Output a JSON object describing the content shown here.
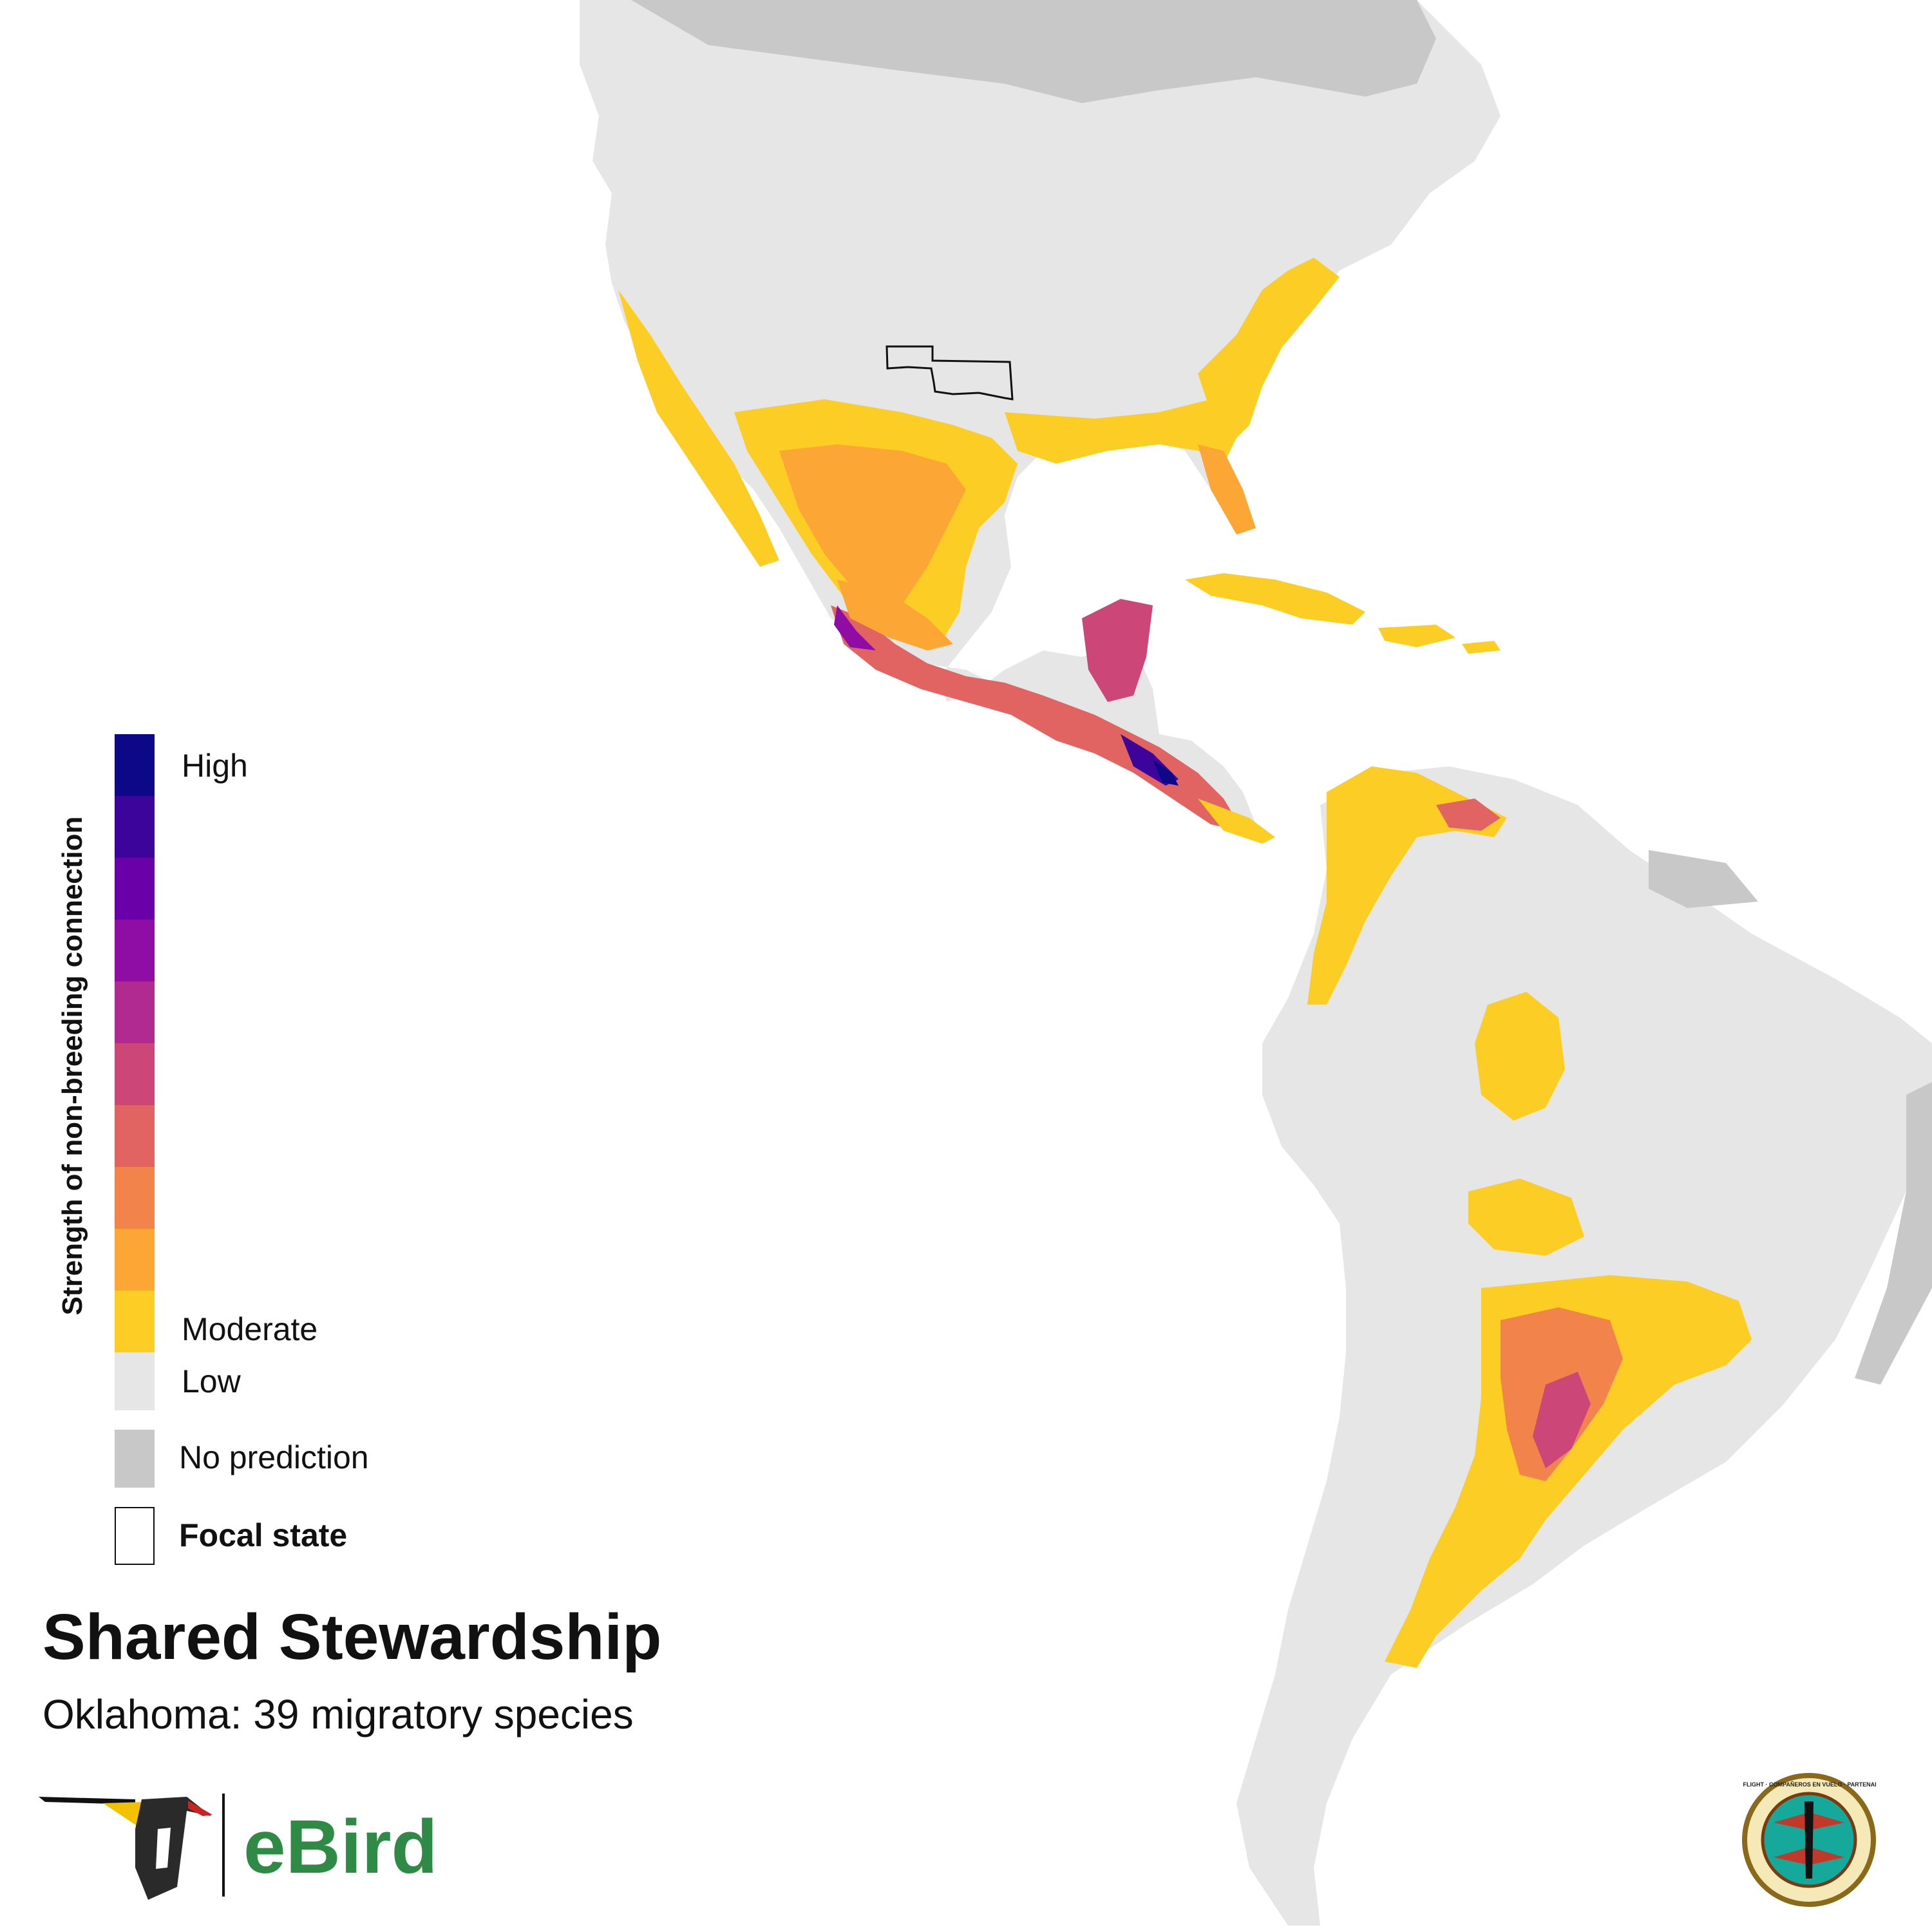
{
  "title": "Shared Stewardship",
  "subtitle": "Oklahoma: 39 migratory species",
  "legend": {
    "axis_title": "Strength of non-breeding connection",
    "high_label": "High",
    "moderate_label": "Moderate",
    "low_label": "Low",
    "no_prediction_label": "No prediction",
    "focal_state_label": "Focal state",
    "scale_colors": [
      "#0d0887",
      "#3d049b",
      "#6a00a8",
      "#8f0da4",
      "#b12a90",
      "#cc4778",
      "#e16462",
      "#f2844b",
      "#fca636",
      "#fcce25"
    ],
    "low_color": "#e6e6e6",
    "no_prediction_color": "#c8c8c8"
  },
  "map": {
    "focal_state": "Oklahoma",
    "land_color": "#e6e6e6",
    "no_prediction_color": "#c8c8c8",
    "boundary_color": "#ffffff"
  },
  "logos": {
    "ebird_text": "eBird",
    "pif_text": "PARTNERS IN FLIGHT · COMPAÑEROS EN VUELO · PARTENAIRES D'ENVOL"
  }
}
